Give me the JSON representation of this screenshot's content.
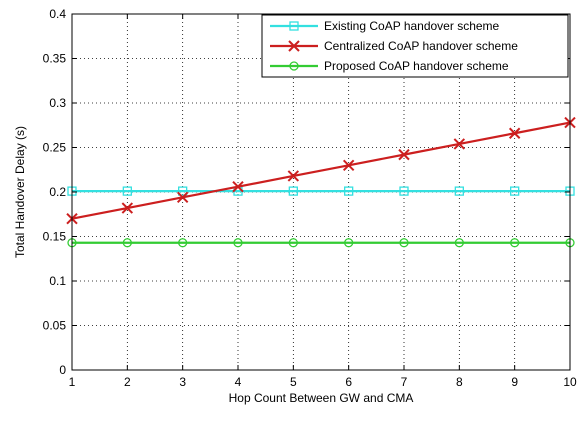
{
  "chart_data": {
    "type": "line",
    "title": "",
    "xlabel": "Hop Count Between GW and CMA",
    "ylabel": "Total Handover Delay (s)",
    "xlim": [
      1,
      10
    ],
    "ylim": [
      0,
      0.4
    ],
    "xticks": [
      1,
      2,
      3,
      4,
      5,
      6,
      7,
      8,
      9,
      10
    ],
    "yticks": [
      0,
      0.05,
      0.1,
      0.15,
      0.2,
      0.25,
      0.3,
      0.35,
      0.4
    ],
    "ytick_labels": [
      "0",
      "0.05",
      "0.1",
      "0.15",
      "0.2",
      "0.25",
      "0.3",
      "0.35",
      "0.4"
    ],
    "grid": true,
    "legend_position": "top-right",
    "x": [
      1,
      2,
      3,
      4,
      5,
      6,
      7,
      8,
      9,
      10
    ],
    "series": [
      {
        "name": "Existing CoAP handover scheme",
        "color": "#33e0e0",
        "marker": "square",
        "values": [
          0.201,
          0.201,
          0.201,
          0.201,
          0.201,
          0.201,
          0.201,
          0.201,
          0.201,
          0.201
        ]
      },
      {
        "name": "Centralized CoAP handover scheme",
        "color": "#cc1f1f",
        "marker": "x",
        "values": [
          0.17,
          0.182,
          0.194,
          0.206,
          0.218,
          0.23,
          0.242,
          0.254,
          0.266,
          0.278
        ]
      },
      {
        "name": "Proposed CoAP handover scheme",
        "color": "#33cc33",
        "marker": "circle",
        "values": [
          0.143,
          0.143,
          0.143,
          0.143,
          0.143,
          0.143,
          0.143,
          0.143,
          0.143,
          0.143
        ]
      }
    ]
  }
}
